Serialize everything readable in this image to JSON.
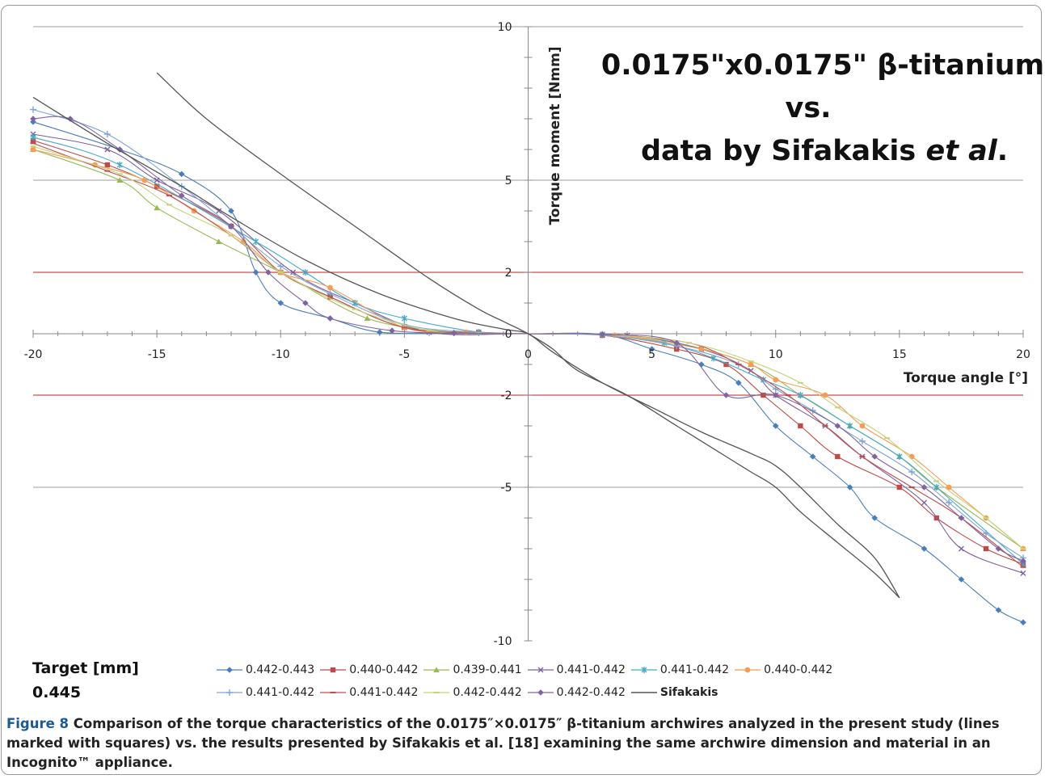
{
  "chart_data": {
    "type": "line",
    "inset_title": {
      "line1": "0.0175\"x0.0175\" β-titanium",
      "line2": "vs.",
      "line3_pre": "data by Sifakakis ",
      "line3_em": "et al",
      "line3_post": "."
    },
    "xlabel": "Torque angle [°]",
    "ylabel": "Torque moment [Nmm]",
    "xlim": [
      -20,
      20
    ],
    "ylim": [
      -10,
      10
    ],
    "x_ticks": [
      -20,
      -15,
      -10,
      -5,
      0,
      5,
      10,
      15,
      20
    ],
    "y_ticks": [
      10,
      5,
      2,
      0,
      -2,
      -5,
      -10
    ],
    "gray_gridlines_y": [
      10,
      5,
      -5
    ],
    "red_reference_lines_y": [
      2,
      -2
    ],
    "grid": true,
    "legend_position": "bottom",
    "series": [
      {
        "name": "0.442-0.443",
        "color": "#4a7ebb",
        "marker": "diamond",
        "points": [
          [
            -20,
            6.9
          ],
          [
            -16.5,
            6.0
          ],
          [
            -14,
            5.2
          ],
          [
            -12,
            4.0
          ],
          [
            -11,
            2.0
          ],
          [
            -10,
            1.0
          ],
          [
            -8,
            0.5
          ],
          [
            -6,
            0.05
          ],
          [
            -3,
            0.02
          ],
          [
            0,
            0
          ],
          [
            3,
            -0.02
          ],
          [
            5,
            -0.5
          ],
          [
            7,
            -1.0
          ],
          [
            8.5,
            -1.6
          ],
          [
            10,
            -3.0
          ],
          [
            11.5,
            -4.0
          ],
          [
            13,
            -5.0
          ],
          [
            14,
            -6.0
          ],
          [
            16,
            -7.0
          ],
          [
            17.5,
            -8.0
          ],
          [
            19,
            -9.0
          ],
          [
            20,
            -9.4
          ]
        ]
      },
      {
        "name": "0.440-0.442",
        "color": "#be4b48",
        "marker": "square",
        "points": [
          [
            -20,
            6.3
          ],
          [
            -17,
            5.5
          ],
          [
            -15,
            4.8
          ],
          [
            -12,
            3.5
          ],
          [
            -10,
            2.0
          ],
          [
            -8,
            1.2
          ],
          [
            -5,
            0.2
          ],
          [
            -2,
            0.05
          ],
          [
            0,
            0
          ],
          [
            3,
            -0.05
          ],
          [
            6,
            -0.5
          ],
          [
            8,
            -1.0
          ],
          [
            9.5,
            -2.0
          ],
          [
            11,
            -3.0
          ],
          [
            12.5,
            -4.0
          ],
          [
            15,
            -5.0
          ],
          [
            16.5,
            -6.0
          ],
          [
            18.5,
            -7.0
          ],
          [
            20,
            -7.5
          ]
        ]
      },
      {
        "name": "0.439-0.441",
        "color": "#98b954",
        "marker": "triangle",
        "points": [
          [
            -20,
            6.0
          ],
          [
            -16.5,
            5.0
          ],
          [
            -15,
            4.1
          ],
          [
            -12.5,
            3.0
          ],
          [
            -10,
            2.0
          ],
          [
            -6.5,
            0.5
          ],
          [
            -3,
            0.05
          ],
          [
            0,
            0
          ],
          [
            3,
            -0.02
          ],
          [
            6,
            -0.3
          ],
          [
            9,
            -1.0
          ],
          [
            11,
            -2.0
          ],
          [
            13,
            -3.0
          ],
          [
            15,
            -4.0
          ],
          [
            16.5,
            -5.0
          ],
          [
            20,
            -7.0
          ]
        ]
      },
      {
        "name": "0.441-0.442",
        "color": "#7d60a0",
        "marker": "x",
        "points": [
          [
            -20,
            6.5
          ],
          [
            -17,
            6.0
          ],
          [
            -15,
            5.0
          ],
          [
            -12.5,
            4.0
          ],
          [
            -9.5,
            2.0
          ],
          [
            -7,
            1.0
          ],
          [
            -4,
            0.05
          ],
          [
            0,
            0
          ],
          [
            4,
            -0.05
          ],
          [
            7,
            -0.5
          ],
          [
            9,
            -1.2
          ],
          [
            10,
            -2.0
          ],
          [
            12,
            -3.0
          ],
          [
            13.5,
            -4.0
          ],
          [
            16,
            -5.5
          ],
          [
            17.5,
            -7.0
          ],
          [
            20,
            -7.8
          ]
        ]
      },
      {
        "name": "0.441-0.442",
        "color": "#46aac5",
        "marker": "star",
        "points": [
          [
            -20,
            6.4
          ],
          [
            -16.5,
            5.5
          ],
          [
            -11,
            3.0
          ],
          [
            -9,
            2.0
          ],
          [
            -7,
            1.0
          ],
          [
            -5,
            0.5
          ],
          [
            -2,
            0.05
          ],
          [
            0,
            0
          ],
          [
            3,
            -0.02
          ],
          [
            5.5,
            -0.3
          ],
          [
            7.5,
            -0.8
          ],
          [
            9.5,
            -1.5
          ],
          [
            11,
            -2.0
          ],
          [
            13,
            -3.0
          ],
          [
            15,
            -4.0
          ],
          [
            16.5,
            -5.0
          ],
          [
            20,
            -7.5
          ]
        ]
      },
      {
        "name": "0.440-0.442",
        "color": "#f59d56",
        "marker": "circle",
        "points": [
          [
            -20,
            6.0
          ],
          [
            -17.5,
            5.5
          ],
          [
            -15.5,
            5.0
          ],
          [
            -13.5,
            4.0
          ],
          [
            -11.5,
            3.0
          ],
          [
            -10,
            2.0
          ],
          [
            -8,
            1.5
          ],
          [
            -5,
            0.2
          ],
          [
            -2.5,
            0.05
          ],
          [
            0,
            0
          ],
          [
            3.5,
            -0.05
          ],
          [
            7,
            -0.5
          ],
          [
            9,
            -1.0
          ],
          [
            10,
            -1.5
          ],
          [
            12,
            -2.0
          ],
          [
            13.5,
            -3.0
          ],
          [
            15.5,
            -4.0
          ],
          [
            17,
            -5.0
          ],
          [
            18.5,
            -6.0
          ],
          [
            20,
            -7.0
          ]
        ]
      },
      {
        "name": "0.441-0.442",
        "color": "#7fa5d6",
        "marker": "plus",
        "points": [
          [
            -20,
            7.3
          ],
          [
            -17,
            6.5
          ],
          [
            -14,
            4.8
          ],
          [
            -12,
            3.5
          ],
          [
            -10,
            2.2
          ],
          [
            -8,
            1.3
          ],
          [
            -5,
            0.3
          ],
          [
            -2,
            0.05
          ],
          [
            0,
            0
          ],
          [
            3,
            -0.05
          ],
          [
            6,
            -0.4
          ],
          [
            8.5,
            -1.0
          ],
          [
            10,
            -1.8
          ],
          [
            11.5,
            -2.5
          ],
          [
            13.5,
            -3.5
          ],
          [
            15.5,
            -4.5
          ],
          [
            17,
            -5.5
          ],
          [
            18.5,
            -6.5
          ],
          [
            20,
            -7.3
          ]
        ]
      },
      {
        "name": "0.441-0.442",
        "color": "#c0504d",
        "marker": "dash",
        "points": [
          [
            -20,
            6.2
          ],
          [
            -17,
            5.3
          ],
          [
            -14.5,
            4.5
          ],
          [
            -12,
            3.2
          ],
          [
            -10,
            2.0
          ],
          [
            -8,
            1.2
          ],
          [
            -5,
            0.2
          ],
          [
            -2,
            0.03
          ],
          [
            0,
            0
          ],
          [
            3,
            -0.02
          ],
          [
            6.5,
            -0.3
          ],
          [
            8.5,
            -1.0
          ],
          [
            10.5,
            -2.0
          ],
          [
            12,
            -3.0
          ],
          [
            13.5,
            -4.0
          ],
          [
            15.5,
            -5.0
          ],
          [
            17.5,
            -6.0
          ],
          [
            20,
            -7.6
          ]
        ]
      },
      {
        "name": "0.442-0.442",
        "color": "#c4d37c",
        "marker": "dash",
        "points": [
          [
            -20,
            6.1
          ],
          [
            -16.5,
            5.2
          ],
          [
            -14.5,
            4.2
          ],
          [
            -12,
            3.2
          ],
          [
            -10,
            2.0
          ],
          [
            -7,
            0.8
          ],
          [
            -4,
            0.1
          ],
          [
            -2,
            0.02
          ],
          [
            0,
            0
          ],
          [
            3,
            -0.02
          ],
          [
            6.5,
            -0.3
          ],
          [
            9,
            -0.9
          ],
          [
            11,
            -1.6
          ],
          [
            12.5,
            -2.4
          ],
          [
            14.5,
            -3.4
          ],
          [
            16.5,
            -4.8
          ],
          [
            18.5,
            -6.0
          ],
          [
            20,
            -7.0
          ]
        ]
      },
      {
        "name": "0.442-0.442",
        "color": "#8064a2",
        "marker": "diamond",
        "points": [
          [
            -20,
            7.0
          ],
          [
            -18.5,
            7.0
          ],
          [
            -16.5,
            6.0
          ],
          [
            -14,
            4.5
          ],
          [
            -12,
            3.5
          ],
          [
            -10.5,
            2.0
          ],
          [
            -9,
            1.0
          ],
          [
            -8,
            0.5
          ],
          [
            -5.5,
            0.1
          ],
          [
            -3,
            0.02
          ],
          [
            0,
            0
          ],
          [
            3,
            -0.02
          ],
          [
            6,
            -0.3
          ],
          [
            8,
            -2.0
          ],
          [
            10,
            -2.0
          ],
          [
            12.5,
            -3.0
          ],
          [
            14,
            -4.0
          ],
          [
            16,
            -5.0
          ],
          [
            17.5,
            -6.0
          ],
          [
            19,
            -7.0
          ],
          [
            20,
            -7.4
          ]
        ]
      },
      {
        "name": "Sifakakis",
        "color": "#555555",
        "marker": "none",
        "points": [
          [
            -15,
            8.5
          ],
          [
            -13,
            7.0
          ],
          [
            -10,
            5.2
          ],
          [
            -7,
            3.5
          ],
          [
            -4,
            1.8
          ],
          [
            -2,
            0.8
          ],
          [
            -1,
            0.4
          ],
          [
            0,
            0
          ],
          [
            1,
            -0.5
          ],
          [
            2,
            -1.2
          ],
          [
            4,
            -2.0
          ],
          [
            6,
            -3.0
          ],
          [
            8,
            -4.0
          ],
          [
            9,
            -4.5
          ],
          [
            10,
            -5.0
          ],
          [
            11,
            -5.8
          ],
          [
            12.5,
            -6.8
          ],
          [
            14,
            -7.8
          ],
          [
            15,
            -8.6
          ]
        ]
      },
      {
        "name": "",
        "color": "#555555",
        "marker": "none",
        "points": [
          [
            -20,
            7.7
          ],
          [
            -17,
            6.2
          ],
          [
            -14,
            4.8
          ],
          [
            -12,
            3.8
          ],
          [
            -9,
            2.4
          ],
          [
            -6,
            1.3
          ],
          [
            -3,
            0.5
          ],
          [
            -1,
            0.15
          ],
          [
            0,
            0
          ],
          [
            1,
            -0.6
          ],
          [
            3,
            -1.6
          ],
          [
            5,
            -2.4
          ],
          [
            7,
            -3.2
          ],
          [
            9,
            -3.9
          ],
          [
            10,
            -4.3
          ],
          [
            11,
            -5.0
          ],
          [
            12.5,
            -6.2
          ],
          [
            14,
            -7.3
          ],
          [
            15,
            -8.6
          ]
        ]
      }
    ]
  },
  "footer": {
    "target_label": "Target [mm]",
    "target_value": "0.445"
  },
  "caption": {
    "label": "Figure 8",
    "text": " Comparison of the torque characteristics of the 0.0175″×0.0175″ β-titanium archwires analyzed in the present study (lines marked with squares) vs. the results presented by Sifakakis et al. [18] examining the same archwire dimension and material in an Incognito™ appliance."
  }
}
